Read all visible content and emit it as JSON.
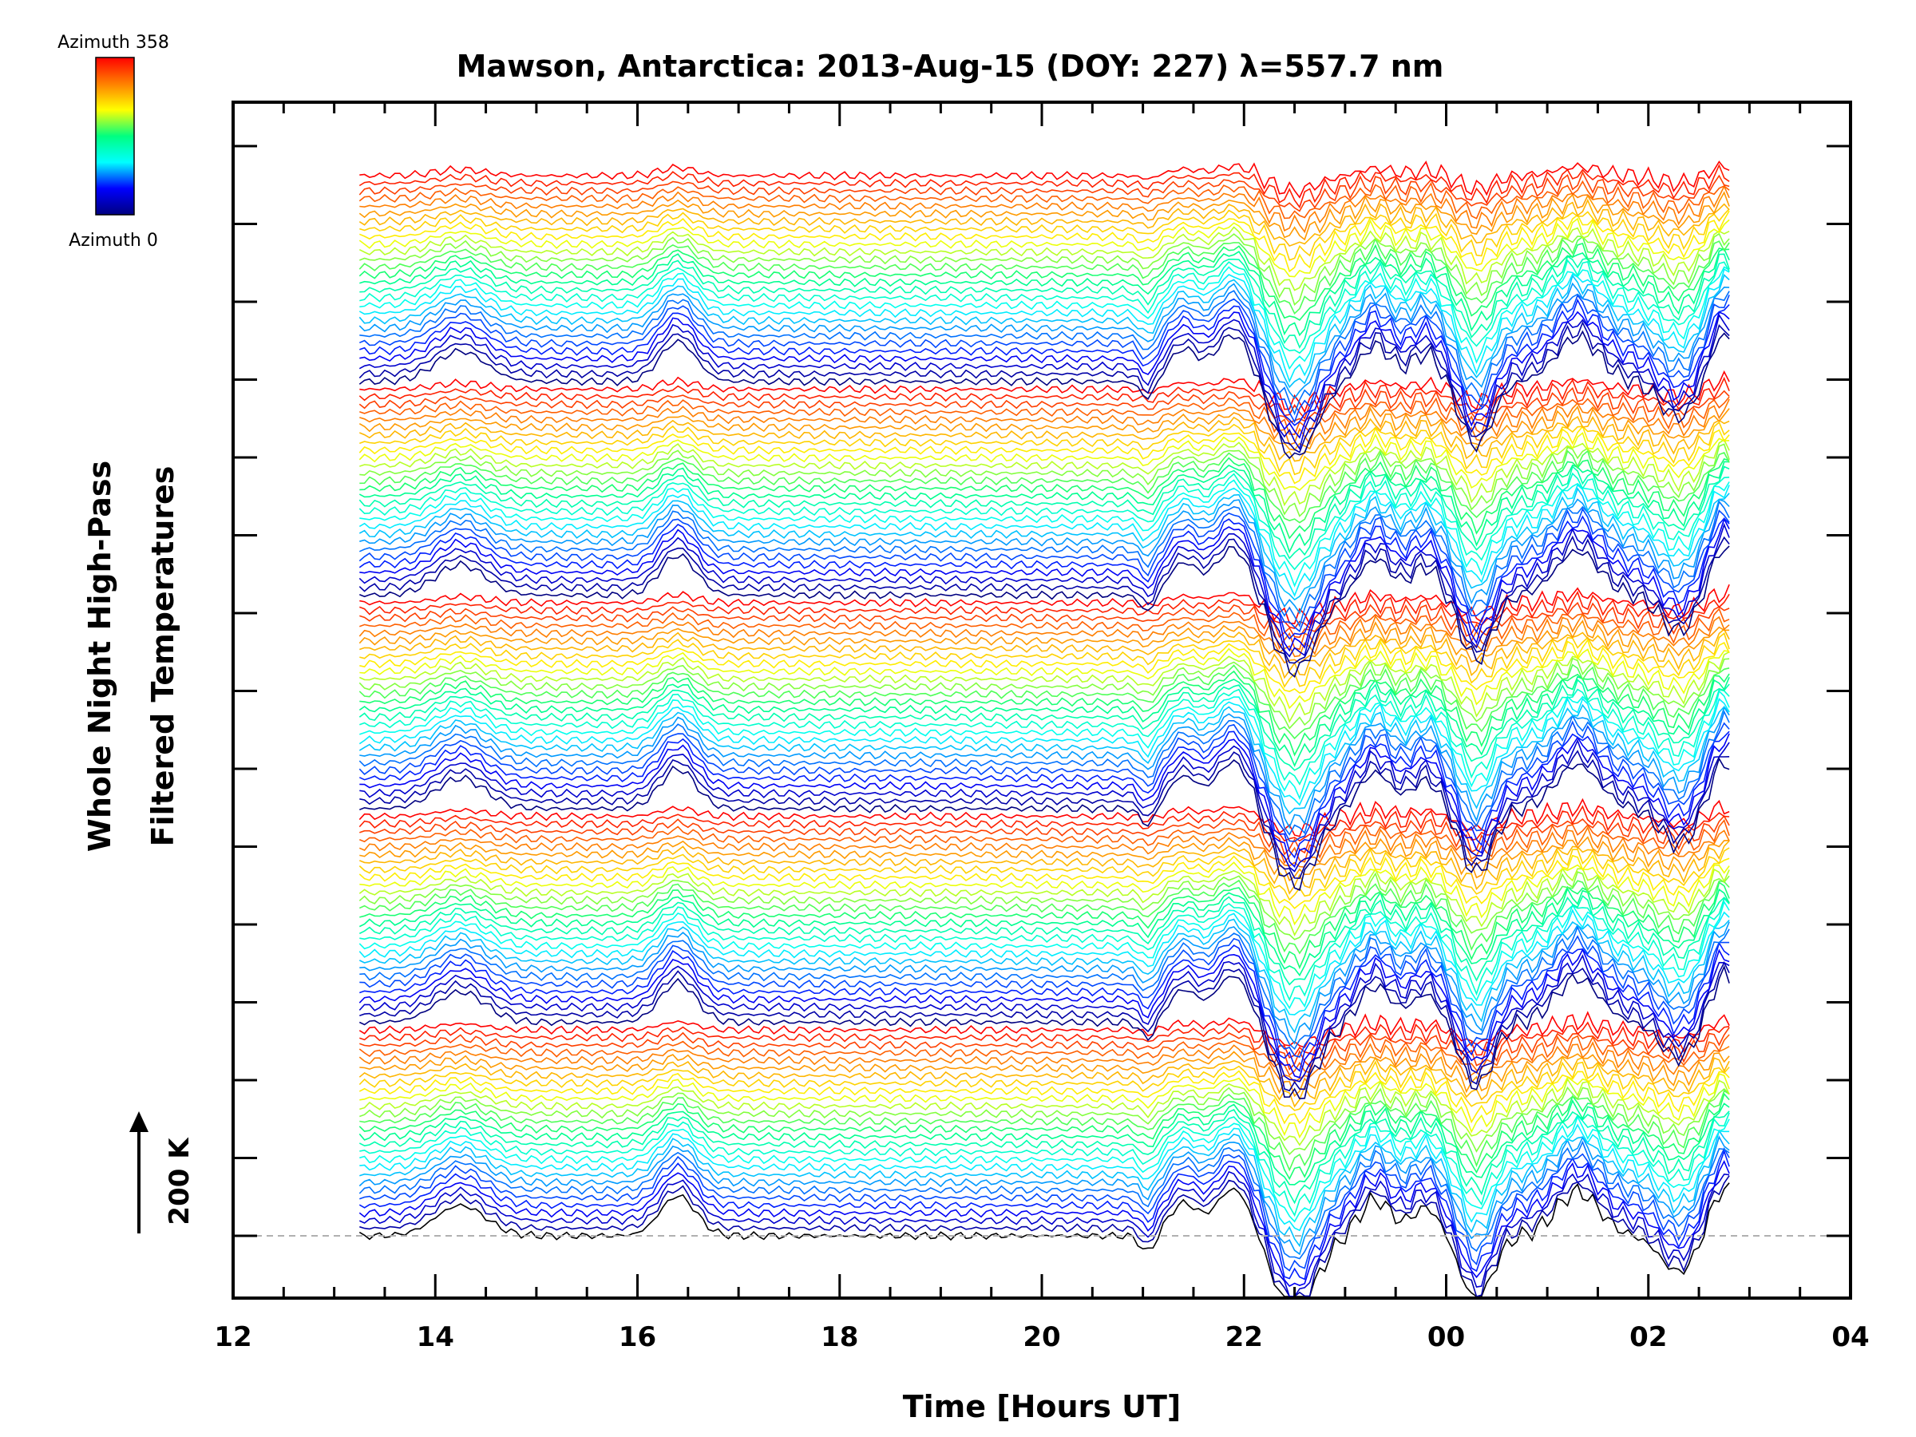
{
  "chart_data": {
    "type": "line",
    "title": "Mawson, Antarctica: 2013-Aug-15 (DOY: 227) λ=557.7 nm",
    "xlabel": "Time [Hours UT]",
    "ylabel_line1": "Whole Night High-Pass",
    "ylabel_line2": "Filtered Temperatures",
    "xlim": [
      12,
      28
    ],
    "x_tick_labels": [
      "12",
      "14",
      "16",
      "18",
      "20",
      "22",
      "00",
      "02",
      "04"
    ],
    "data_start_hour": 13.25,
    "data_end_hour": 26.8,
    "n_series": 140,
    "colorbar": {
      "top_label": "Azimuth 358",
      "bottom_label": "Azimuth 0",
      "colormap": "rainbow",
      "colors": [
        "#000080",
        "#0000ff",
        "#00ffff",
        "#00ff80",
        "#ffff00",
        "#ff8000",
        "#ff0000"
      ]
    },
    "scale_bar": {
      "label": "200 K",
      "arrow": "up"
    },
    "baseline_dashed": true,
    "axes_color": "#000000",
    "baseline_color": "#b0b0b0",
    "bottom_trace_color": "#000000"
  }
}
